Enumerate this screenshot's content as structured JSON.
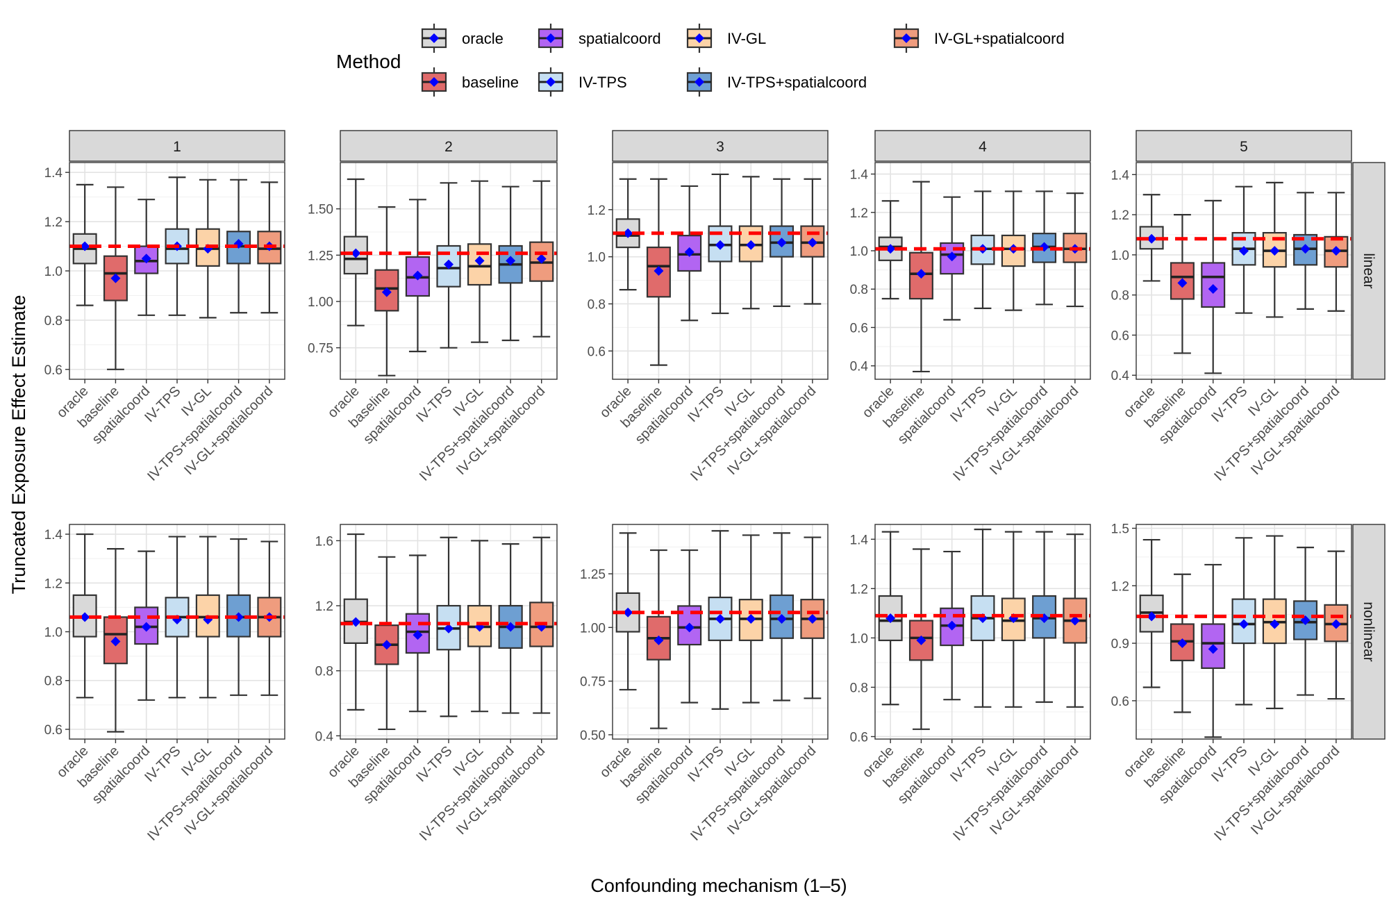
{
  "chart_data": {
    "type": "boxplot",
    "ylabel": "Truncated Exposure Effect Estimate",
    "xlabel": "Confounding mechanism (1–5)",
    "legend": {
      "title": "Method",
      "placement": "top",
      "entries": [
        {
          "label": "oracle",
          "color": "#d9d9d9"
        },
        {
          "label": "baseline",
          "color": "#e06b6b"
        },
        {
          "label": "spatialcoord",
          "color": "#b265f2"
        },
        {
          "label": "IV-TPS",
          "color": "#c6dff2"
        },
        {
          "label": "IV-GL",
          "color": "#fcd3a8"
        },
        {
          "label": "IV-TPS+spatialcoord",
          "color": "#6e9fd2"
        },
        {
          "label": "IV-GL+spatialcoord",
          "color": "#ef9c7e"
        }
      ]
    },
    "methods": [
      "oracle",
      "baseline",
      "spatialcoord",
      "IV-TPS",
      "IV-GL",
      "IV-TPS+spatialcoord",
      "IV-GL+spatialcoord"
    ],
    "colors": [
      "#d9d9d9",
      "#e06b6b",
      "#b265f2",
      "#c6dff2",
      "#fcd3a8",
      "#6e9fd2",
      "#ef9c7e"
    ],
    "col_strips": [
      "1",
      "2",
      "3",
      "4",
      "5"
    ],
    "row_strips": [
      "linear",
      "nonlinear"
    ],
    "panels": [
      {
        "row": 0,
        "col": 0,
        "ylim": [
          0.56,
          1.44
        ],
        "yticks": [
          0.6,
          0.8,
          1.0,
          1.2,
          1.4
        ],
        "ytick_labels": [
          "0.6",
          "0.8",
          "1.0",
          "1.2",
          "1.4"
        ],
        "truth": 1.1,
        "boxes": [
          [
            0.86,
            1.03,
            1.09,
            1.15,
            1.35,
            1.1
          ],
          [
            0.6,
            0.88,
            0.99,
            1.06,
            1.34,
            0.97
          ],
          [
            0.82,
            0.99,
            1.04,
            1.1,
            1.29,
            1.05
          ],
          [
            0.82,
            1.03,
            1.09,
            1.17,
            1.38,
            1.1
          ],
          [
            0.81,
            1.02,
            1.09,
            1.17,
            1.37,
            1.09
          ],
          [
            0.83,
            1.03,
            1.1,
            1.16,
            1.37,
            1.11
          ],
          [
            0.83,
            1.03,
            1.09,
            1.16,
            1.36,
            1.1
          ]
        ]
      },
      {
        "row": 0,
        "col": 1,
        "ylim": [
          0.58,
          1.75
        ],
        "yticks": [
          0.75,
          1.0,
          1.25,
          1.5
        ],
        "ytick_labels": [
          "0.75",
          "1.00",
          "1.25",
          "1.50"
        ],
        "truth": 1.26,
        "boxes": [
          [
            0.87,
            1.15,
            1.23,
            1.35,
            1.66,
            1.26
          ],
          [
            0.6,
            0.95,
            1.07,
            1.17,
            1.51,
            1.05
          ],
          [
            0.73,
            1.03,
            1.13,
            1.24,
            1.55,
            1.14
          ],
          [
            0.75,
            1.08,
            1.18,
            1.3,
            1.64,
            1.2
          ],
          [
            0.78,
            1.09,
            1.19,
            1.31,
            1.65,
            1.22
          ],
          [
            0.79,
            1.1,
            1.2,
            1.3,
            1.62,
            1.22
          ],
          [
            0.81,
            1.11,
            1.21,
            1.32,
            1.65,
            1.23
          ]
        ]
      },
      {
        "row": 0,
        "col": 2,
        "ylim": [
          0.48,
          1.4
        ],
        "yticks": [
          0.6,
          0.8,
          1.0,
          1.2
        ],
        "ytick_labels": [
          "0.6",
          "0.8",
          "1.0",
          "1.2"
        ],
        "truth": 1.1,
        "boxes": [
          [
            0.86,
            1.04,
            1.09,
            1.16,
            1.33,
            1.1
          ],
          [
            0.54,
            0.83,
            0.96,
            1.04,
            1.33,
            0.94
          ],
          [
            0.73,
            0.94,
            1.01,
            1.09,
            1.3,
            1.02
          ],
          [
            0.76,
            0.98,
            1.05,
            1.13,
            1.35,
            1.05
          ],
          [
            0.78,
            0.98,
            1.05,
            1.13,
            1.34,
            1.05
          ],
          [
            0.79,
            1.0,
            1.06,
            1.13,
            1.33,
            1.06
          ],
          [
            0.8,
            1.0,
            1.06,
            1.13,
            1.33,
            1.06
          ]
        ]
      },
      {
        "row": 0,
        "col": 3,
        "ylim": [
          0.33,
          1.46
        ],
        "yticks": [
          0.4,
          0.6,
          0.8,
          1.0,
          1.2,
          1.4
        ],
        "ytick_labels": [
          "0.4",
          "0.6",
          "0.8",
          "1.0",
          "1.2",
          "1.4"
        ],
        "truth": 1.01,
        "boxes": [
          [
            0.75,
            0.95,
            1.02,
            1.07,
            1.26,
            1.01
          ],
          [
            0.37,
            0.75,
            0.88,
            0.99,
            1.36,
            0.88
          ],
          [
            0.64,
            0.88,
            0.98,
            1.04,
            1.28,
            0.97
          ],
          [
            0.7,
            0.93,
            1.01,
            1.08,
            1.31,
            1.01
          ],
          [
            0.69,
            0.92,
            1.01,
            1.08,
            1.31,
            1.01
          ],
          [
            0.72,
            0.94,
            1.02,
            1.09,
            1.31,
            1.02
          ],
          [
            0.71,
            0.94,
            1.01,
            1.09,
            1.3,
            1.01
          ]
        ]
      },
      {
        "row": 0,
        "col": 4,
        "ylim": [
          0.38,
          1.46
        ],
        "yticks": [
          0.4,
          0.6,
          0.8,
          1.0,
          1.2,
          1.4
        ],
        "ytick_labels": [
          "0.4",
          "0.6",
          "0.8",
          "1.0",
          "1.2",
          "1.4"
        ],
        "truth": 1.08,
        "boxes": [
          [
            0.87,
            1.03,
            1.08,
            1.14,
            1.3,
            1.08
          ],
          [
            0.51,
            0.78,
            0.89,
            0.96,
            1.2,
            0.86
          ],
          [
            0.41,
            0.74,
            0.89,
            0.96,
            1.27,
            0.83
          ],
          [
            0.71,
            0.95,
            1.03,
            1.11,
            1.34,
            1.02
          ],
          [
            0.69,
            0.94,
            1.02,
            1.11,
            1.36,
            1.02
          ],
          [
            0.73,
            0.95,
            1.03,
            1.1,
            1.31,
            1.03
          ],
          [
            0.72,
            0.94,
            1.02,
            1.09,
            1.31,
            1.02
          ]
        ]
      },
      {
        "row": 1,
        "col": 0,
        "ylim": [
          0.56,
          1.44
        ],
        "yticks": [
          0.6,
          0.8,
          1.0,
          1.2,
          1.4
        ],
        "ytick_labels": [
          "0.6",
          "0.8",
          "1.0",
          "1.2",
          "1.4"
        ],
        "truth": 1.06,
        "boxes": [
          [
            0.73,
            0.98,
            1.06,
            1.15,
            1.4,
            1.06
          ],
          [
            0.59,
            0.87,
            0.99,
            1.06,
            1.34,
            0.96
          ],
          [
            0.72,
            0.95,
            1.02,
            1.1,
            1.33,
            1.02
          ],
          [
            0.73,
            0.98,
            1.06,
            1.14,
            1.39,
            1.05
          ],
          [
            0.73,
            0.98,
            1.06,
            1.15,
            1.39,
            1.05
          ],
          [
            0.74,
            0.98,
            1.06,
            1.15,
            1.38,
            1.06
          ],
          [
            0.74,
            0.98,
            1.06,
            1.14,
            1.37,
            1.06
          ]
        ]
      },
      {
        "row": 1,
        "col": 1,
        "ylim": [
          0.38,
          1.7
        ],
        "yticks": [
          0.4,
          0.8,
          1.2,
          1.6
        ],
        "ytick_labels": [
          "0.4",
          "0.8",
          "1.2",
          "1.6"
        ],
        "truth": 1.09,
        "boxes": [
          [
            0.56,
            0.97,
            1.1,
            1.24,
            1.64,
            1.1
          ],
          [
            0.44,
            0.84,
            0.96,
            1.08,
            1.5,
            0.96
          ],
          [
            0.55,
            0.91,
            1.04,
            1.15,
            1.51,
            1.02
          ],
          [
            0.52,
            0.93,
            1.06,
            1.2,
            1.62,
            1.06
          ],
          [
            0.55,
            0.95,
            1.07,
            1.2,
            1.6,
            1.07
          ],
          [
            0.54,
            0.94,
            1.07,
            1.2,
            1.58,
            1.07
          ],
          [
            0.54,
            0.95,
            1.07,
            1.22,
            1.62,
            1.07
          ]
        ]
      },
      {
        "row": 1,
        "col": 2,
        "ylim": [
          0.48,
          1.48
        ],
        "yticks": [
          0.5,
          0.75,
          1.0,
          1.25
        ],
        "ytick_labels": [
          "0.50",
          "0.75",
          "1.00",
          "1.25"
        ],
        "truth": 1.07,
        "boxes": [
          [
            0.71,
            0.98,
            1.07,
            1.16,
            1.44,
            1.07
          ],
          [
            0.53,
            0.85,
            0.95,
            1.05,
            1.36,
            0.94
          ],
          [
            0.65,
            0.92,
            1.0,
            1.1,
            1.36,
            1.0
          ],
          [
            0.62,
            0.94,
            1.04,
            1.14,
            1.45,
            1.04
          ],
          [
            0.65,
            0.94,
            1.04,
            1.13,
            1.43,
            1.04
          ],
          [
            0.66,
            0.95,
            1.04,
            1.15,
            1.44,
            1.04
          ],
          [
            0.67,
            0.95,
            1.04,
            1.13,
            1.42,
            1.04
          ]
        ]
      },
      {
        "row": 1,
        "col": 3,
        "ylim": [
          0.59,
          1.46
        ],
        "yticks": [
          0.6,
          0.8,
          1.0,
          1.2,
          1.4
        ],
        "ytick_labels": [
          "0.6",
          "0.8",
          "1.0",
          "1.2",
          "1.4"
        ],
        "truth": 1.09,
        "boxes": [
          [
            0.73,
            0.99,
            1.07,
            1.17,
            1.43,
            1.08
          ],
          [
            0.63,
            0.91,
            1.0,
            1.07,
            1.36,
            0.99
          ],
          [
            0.75,
            0.97,
            1.05,
            1.12,
            1.35,
            1.05
          ],
          [
            0.72,
            0.99,
            1.08,
            1.17,
            1.44,
            1.08
          ],
          [
            0.72,
            0.99,
            1.07,
            1.16,
            1.43,
            1.08
          ],
          [
            0.74,
            1.0,
            1.08,
            1.17,
            1.43,
            1.08
          ],
          [
            0.72,
            0.98,
            1.07,
            1.16,
            1.42,
            1.07
          ]
        ]
      },
      {
        "row": 1,
        "col": 4,
        "ylim": [
          0.4,
          1.52
        ],
        "yticks": [
          0.6,
          0.9,
          1.2,
          1.5
        ],
        "ytick_labels": [
          "0.6",
          "0.9",
          "1.2",
          "1.5"
        ],
        "truth": 1.04,
        "boxes": [
          [
            0.67,
            0.96,
            1.06,
            1.15,
            1.44,
            1.04
          ],
          [
            0.54,
            0.81,
            0.91,
            1.0,
            1.26,
            0.9
          ],
          [
            0.41,
            0.77,
            0.9,
            1.0,
            1.31,
            0.87
          ],
          [
            0.58,
            0.9,
            1.0,
            1.13,
            1.45,
            1.0
          ],
          [
            0.56,
            0.9,
            1.01,
            1.13,
            1.46,
            1.0
          ],
          [
            0.63,
            0.92,
            1.01,
            1.12,
            1.4,
            1.02
          ],
          [
            0.61,
            0.91,
            1.0,
            1.1,
            1.38,
            1.0
          ]
        ]
      }
    ]
  }
}
